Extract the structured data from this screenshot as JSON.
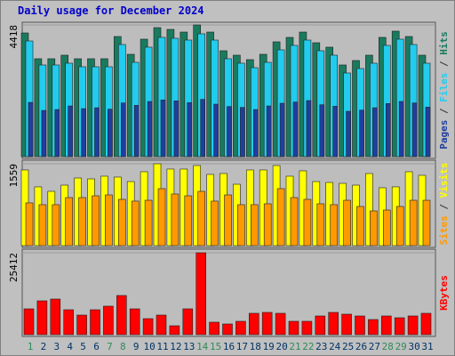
{
  "chart_data": [
    {
      "type": "bar",
      "title": "Daily usage for December 2024",
      "ylim": [
        0,
        4418
      ],
      "yticks": [
        4418
      ],
      "legend_separator": " / ",
      "series": [
        {
          "name": "Pages",
          "color": "#1f3f9f",
          "values": [
            1820,
            1550,
            1580,
            1700,
            1610,
            1640,
            1590,
            1800,
            1720,
            1850,
            1900,
            1870,
            1810,
            1920,
            1760,
            1680,
            1650,
            1580,
            1700,
            1790,
            1830,
            1880,
            1740,
            1690,
            1520,
            1560,
            1640,
            1780,
            1850,
            1800,
            1660
          ]
        },
        {
          "name": "Files",
          "color": "#22ccee",
          "values": [
            3880,
            3075,
            3075,
            3134,
            3015,
            3015,
            3015,
            3761,
            3164,
            3672,
            4000,
            3970,
            3910,
            4120,
            3910,
            3284,
            3134,
            2985,
            3164,
            3582,
            3731,
            3910,
            3552,
            3403,
            2806,
            2955,
            3134,
            3731,
            3940,
            3761,
            3134
          ]
        },
        {
          "name": "Hits",
          "color": "#1a7a5e",
          "values": [
            4149,
            3284,
            3284,
            3403,
            3284,
            3284,
            3284,
            4030,
            3433,
            3940,
            4328,
            4269,
            4179,
            4418,
            4179,
            3552,
            3403,
            3254,
            3433,
            3851,
            4000,
            4179,
            3821,
            3672,
            3075,
            3224,
            3403,
            4000,
            4209,
            4030,
            3403
          ]
        }
      ]
    },
    {
      "type": "bar",
      "ylim": [
        0,
        1559
      ],
      "yticks": [
        1559
      ],
      "legend_separator": " / ",
      "series": [
        {
          "name": "Sites",
          "color": "#ff9900",
          "values": [
            814,
            780,
            780,
            915,
            915,
            949,
            966,
            881,
            848,
            864,
            1085,
            983,
            949,
            1034,
            848,
            966,
            780,
            780,
            797,
            1085,
            915,
            881,
            797,
            780,
            864,
            746,
            661,
            678,
            746,
            864,
            864
          ]
        },
        {
          "name": "Visits",
          "color": "#ffff00",
          "values": [
            1441,
            1119,
            1034,
            1152,
            1288,
            1271,
            1322,
            1305,
            1220,
            1407,
            1559,
            1458,
            1458,
            1525,
            1356,
            1373,
            1169,
            1441,
            1441,
            1525,
            1322,
            1424,
            1220,
            1203,
            1186,
            1152,
            1373,
            1102,
            1119,
            1407,
            1339
          ]
        }
      ]
    },
    {
      "type": "bar",
      "ylim": [
        0,
        25412
      ],
      "yticks": [
        25412
      ],
      "series": [
        {
          "name": "KBytes",
          "color": "#ff0000",
          "values": [
            8010,
            10496,
            11048,
            7734,
            6076,
            7734,
            8838,
            12153,
            8010,
            4972,
            6076,
            2762,
            8010,
            25412,
            3867,
            3314,
            4143,
            6629,
            6905,
            6629,
            4143,
            4143,
            5800,
            6905,
            6353,
            5800,
            4695,
            5800,
            5248,
            5800,
            6629
          ]
        }
      ],
      "categories": [
        "1",
        "2",
        "3",
        "4",
        "5",
        "6",
        "7",
        "8",
        "9",
        "10",
        "11",
        "12",
        "13",
        "14",
        "15",
        "16",
        "17",
        "18",
        "19",
        "20",
        "21",
        "22",
        "23",
        "24",
        "25",
        "26",
        "27",
        "28",
        "29",
        "30",
        "31"
      ],
      "category_colors": [
        "#2e8b57",
        "#003366",
        "#003366",
        "#003366",
        "#003366",
        "#003366",
        "#2e8b57",
        "#2e8b57",
        "#003366",
        "#003366",
        "#003366",
        "#003366",
        "#003366",
        "#2e8b57",
        "#2e8b57",
        "#003366",
        "#003366",
        "#003366",
        "#003366",
        "#003366",
        "#2e8b57",
        "#2e8b57",
        "#003366",
        "#003366",
        "#003366",
        "#003366",
        "#003366",
        "#2e8b57",
        "#2e8b57",
        "#003366",
        "#003366"
      ]
    }
  ]
}
